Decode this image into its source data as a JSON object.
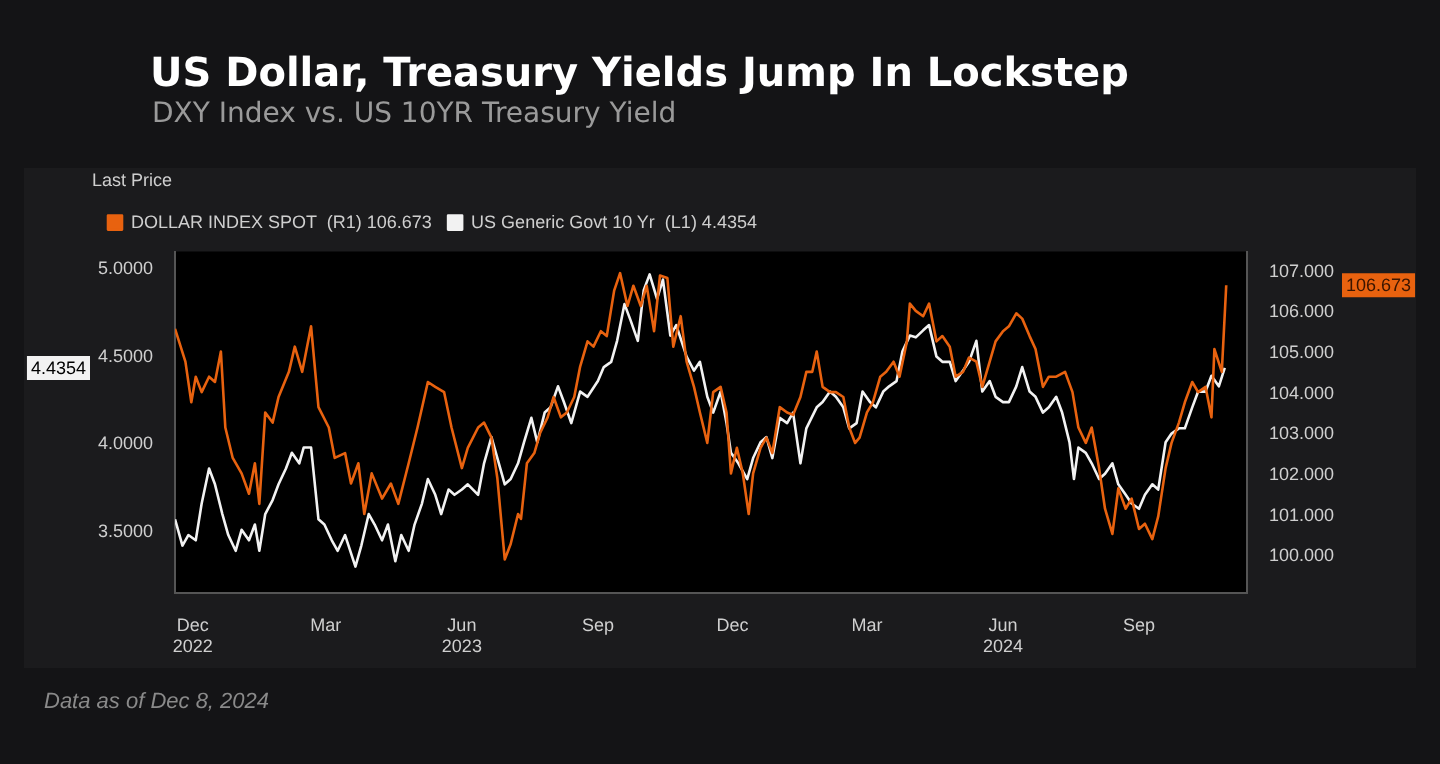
{
  "chart_data": {
    "type": "line",
    "title": "US Dollar, Treasury Yields Jump In Lockstep",
    "subtitle": "DXY Index vs. US 10YR Treasury Yield",
    "legend_title": "Last Price",
    "legend": "top left",
    "grid": false,
    "marker": "none",
    "line_style": "solid",
    "annotations": [
      "106.673",
      "4.4354",
      "Data as of Dec 8, 2024"
    ],
    "xlim": [
      "2022-12-03",
      "2024-11-27"
    ],
    "xticks": [
      {
        "value": "2022-12-15",
        "label": "Dec\n2022"
      },
      {
        "value": "2023-03-15",
        "label": "Mar"
      },
      {
        "value": "2023-06-15",
        "label": "Jun\n2023"
      },
      {
        "value": "2023-09-15",
        "label": "Sep"
      },
      {
        "value": "2023-12-15",
        "label": "Dec"
      },
      {
        "value": "2024-03-15",
        "label": "Mar"
      },
      {
        "value": "2024-06-15",
        "label": "Jun\n2024"
      },
      {
        "value": "2024-09-15",
        "label": "Sep"
      }
    ],
    "ylim": [
      3.15,
      5.1
    ],
    "yticks": [
      {
        "value": 3.5,
        "label": "3.5000"
      },
      {
        "value": 4,
        "label": "4.0000"
      },
      {
        "value": 4.5,
        "label": "4.5000"
      },
      {
        "value": 5,
        "label": "5.0000"
      }
    ],
    "y2lim": [
      99.1,
      107.5
    ],
    "y2ticks": [
      {
        "value": 100,
        "label": "100.000"
      },
      {
        "value": 101,
        "label": "101.000"
      },
      {
        "value": 102,
        "label": "102.000"
      },
      {
        "value": 103,
        "label": "103.000"
      },
      {
        "value": 104,
        "label": "104.000"
      },
      {
        "value": 105,
        "label": "105.000"
      },
      {
        "value": 106,
        "label": "106.000"
      },
      {
        "value": 107,
        "label": "107.000"
      }
    ],
    "series": [
      {
        "name": "DOLLAR INDEX SPOT  (R1) 106.673",
        "color": "#e8620f",
        "axis": "y2",
        "x": [
          "2022-12-03",
          "2022-12-10",
          "2022-12-14",
          "2022-12-17",
          "2022-12-21",
          "2022-12-26",
          "2022-12-30",
          "2023-01-03",
          "2023-01-06",
          "2023-01-11",
          "2023-01-17",
          "2023-01-22",
          "2023-01-26",
          "2023-01-29",
          "2023-02-02",
          "2023-02-07",
          "2023-02-11",
          "2023-02-18",
          "2023-02-22",
          "2023-02-27",
          "2023-03-05",
          "2023-03-10",
          "2023-03-17",
          "2023-03-21",
          "2023-03-28",
          "2023-04-01",
          "2023-04-06",
          "2023-04-10",
          "2023-04-15",
          "2023-04-22",
          "2023-04-28",
          "2023-05-03",
          "2023-05-10",
          "2023-05-16",
          "2023-05-23",
          "2023-05-28",
          "2023-06-03",
          "2023-06-08",
          "2023-06-15",
          "2023-06-19",
          "2023-06-26",
          "2023-06-30",
          "2023-07-05",
          "2023-07-09",
          "2023-07-14",
          "2023-07-18",
          "2023-07-23",
          "2023-07-25",
          "2023-07-29",
          "2023-08-03",
          "2023-08-07",
          "2023-08-12",
          "2023-08-16",
          "2023-08-21",
          "2023-08-25",
          "2023-08-30",
          "2023-09-03",
          "2023-09-08",
          "2023-09-12",
          "2023-09-17",
          "2023-09-21",
          "2023-09-26",
          "2023-09-30",
          "2023-10-05",
          "2023-10-09",
          "2023-10-14",
          "2023-10-18",
          "2023-10-23",
          "2023-10-27",
          "2023-11-01",
          "2023-11-05",
          "2023-11-10",
          "2023-11-14",
          "2023-11-19",
          "2023-11-23",
          "2023-11-28",
          "2023-12-02",
          "2023-12-07",
          "2023-12-11",
          "2023-12-14",
          "2023-12-18",
          "2023-12-22",
          "2023-12-26",
          "2023-12-29",
          "2024-01-03",
          "2024-01-07",
          "2024-01-11",
          "2024-01-16",
          "2024-01-21",
          "2024-01-25",
          "2024-01-30",
          "2024-02-03",
          "2024-02-07",
          "2024-02-10",
          "2024-02-14",
          "2024-02-19",
          "2024-02-23",
          "2024-02-28",
          "2024-03-03",
          "2024-03-07",
          "2024-03-10",
          "2024-03-15",
          "2024-03-19",
          "2024-03-24",
          "2024-03-28",
          "2024-04-02",
          "2024-04-06",
          "2024-04-11",
          "2024-04-13",
          "2024-04-17",
          "2024-04-22",
          "2024-04-26",
          "2024-05-01",
          "2024-05-05",
          "2024-05-10",
          "2024-05-14",
          "2024-05-19",
          "2024-05-23",
          "2024-05-28",
          "2024-06-01",
          "2024-06-06",
          "2024-06-10",
          "2024-06-15",
          "2024-06-19",
          "2024-06-24",
          "2024-06-28",
          "2024-07-03",
          "2024-07-07",
          "2024-07-12",
          "2024-07-16",
          "2024-07-21",
          "2024-07-27",
          "2024-08-01",
          "2024-08-05",
          "2024-08-10",
          "2024-08-14",
          "2024-08-19",
          "2024-08-23",
          "2024-08-28",
          "2024-09-01",
          "2024-09-06",
          "2024-09-10",
          "2024-09-15",
          "2024-09-19",
          "2024-09-24",
          "2024-09-28",
          "2024-10-03",
          "2024-10-07",
          "2024-10-12",
          "2024-10-16",
          "2024-10-21",
          "2024-10-25",
          "2024-10-30",
          "2024-11-03",
          "2024-11-05",
          "2024-11-10",
          "2024-11-13"
        ],
        "values": [
          105.6,
          104.79,
          103.79,
          104.42,
          104.04,
          104.42,
          104.29,
          105.04,
          103.17,
          102.42,
          102.04,
          101.54,
          102.29,
          101.29,
          103.54,
          103.29,
          103.92,
          104.54,
          105.16,
          104.54,
          105.66,
          103.67,
          103.17,
          102.42,
          102.54,
          101.79,
          102.29,
          101.04,
          102.04,
          101.42,
          101.79,
          101.29,
          102.29,
          103.17,
          104.29,
          104.17,
          104.04,
          103.17,
          102.17,
          102.67,
          103.17,
          103.29,
          102.92,
          101.92,
          99.92,
          100.3,
          101.04,
          100.92,
          102.29,
          102.54,
          103.04,
          103.42,
          103.92,
          103.42,
          103.54,
          103.92,
          104.67,
          105.29,
          105.16,
          105.54,
          105.42,
          106.54,
          106.97,
          106.16,
          106.66,
          106.16,
          106.66,
          105.54,
          106.91,
          106.85,
          105.16,
          105.91,
          104.79,
          104.17,
          103.54,
          102.79,
          104.04,
          104.17,
          103.54,
          102.04,
          102.67,
          102.04,
          101.04,
          102.04,
          102.67,
          102.92,
          102.54,
          103.67,
          103.54,
          103.48,
          103.92,
          104.54,
          104.54,
          105.04,
          104.17,
          104.04,
          104.04,
          103.92,
          103.17,
          102.79,
          102.92,
          103.54,
          103.79,
          104.42,
          104.54,
          104.79,
          104.42,
          105.29,
          106.22,
          106.04,
          105.91,
          106.22,
          105.29,
          105.42,
          105.16,
          104.42,
          104.54,
          104.89,
          104.79,
          104.17,
          104.79,
          105.29,
          105.54,
          105.66,
          105.98,
          105.85,
          105.42,
          105.1,
          104.17,
          104.42,
          104.42,
          104.54,
          104.04,
          103.17,
          102.79,
          103.17,
          102.17,
          101.17,
          100.55,
          101.67,
          101.17,
          101.42,
          100.67,
          100.8,
          100.42,
          100.98,
          102.17,
          102.79,
          103.29,
          103.79,
          104.29,
          104.04,
          104.17,
          103.42,
          105.1,
          104.54,
          106.673
        ]
      },
      {
        "name": "US Generic Govt 10 Yr  (L1) 4.4354",
        "color": "#f2f2f2",
        "axis": "y",
        "x": [
          "2022-12-03",
          "2022-12-08",
          "2022-12-12",
          "2022-12-17",
          "2022-12-21",
          "2022-12-26",
          "2022-12-30",
          "2023-01-04",
          "2023-01-08",
          "2023-01-13",
          "2023-01-17",
          "2023-01-22",
          "2023-01-26",
          "2023-01-29",
          "2023-02-02",
          "2023-02-07",
          "2023-02-11",
          "2023-02-16",
          "2023-02-20",
          "2023-02-25",
          "2023-02-28",
          "2023-03-05",
          "2023-03-10",
          "2023-03-14",
          "2023-03-19",
          "2023-03-23",
          "2023-03-28",
          "2023-04-04",
          "2023-04-08",
          "2023-04-13",
          "2023-04-17",
          "2023-04-22",
          "2023-04-26",
          "2023-05-01",
          "2023-05-05",
          "2023-05-10",
          "2023-05-14",
          "2023-05-19",
          "2023-05-23",
          "2023-05-28",
          "2023-06-01",
          "2023-06-06",
          "2023-06-10",
          "2023-06-15",
          "2023-06-19",
          "2023-06-26",
          "2023-06-30",
          "2023-07-05",
          "2023-07-09",
          "2023-07-14",
          "2023-07-18",
          "2023-07-23",
          "2023-07-27",
          "2023-08-01",
          "2023-08-05",
          "2023-08-10",
          "2023-08-14",
          "2023-08-19",
          "2023-08-23",
          "2023-08-28",
          "2023-09-03",
          "2023-09-08",
          "2023-09-15",
          "2023-09-19",
          "2023-09-24",
          "2023-09-28",
          "2023-10-03",
          "2023-10-07",
          "2023-10-12",
          "2023-10-16",
          "2023-10-20",
          "2023-10-25",
          "2023-10-29",
          "2023-11-03",
          "2023-11-07",
          "2023-11-14",
          "2023-11-19",
          "2023-11-23",
          "2023-11-28",
          "2023-12-02",
          "2023-12-07",
          "2023-12-11",
          "2023-12-14",
          "2023-12-19",
          "2023-12-25",
          "2023-12-29",
          "2024-01-03",
          "2024-01-07",
          "2024-01-11",
          "2024-01-16",
          "2024-01-21",
          "2024-01-25",
          "2024-01-30",
          "2024-02-03",
          "2024-02-10",
          "2024-02-14",
          "2024-02-19",
          "2024-02-23",
          "2024-02-28",
          "2024-03-03",
          "2024-03-08",
          "2024-03-12",
          "2024-03-17",
          "2024-03-21",
          "2024-03-26",
          "2024-03-30",
          "2024-04-04",
          "2024-04-08",
          "2024-04-13",
          "2024-04-17",
          "2024-04-22",
          "2024-04-26",
          "2024-05-01",
          "2024-05-05",
          "2024-05-10",
          "2024-05-14",
          "2024-05-19",
          "2024-05-23",
          "2024-05-28",
          "2024-06-01",
          "2024-06-06",
          "2024-06-10",
          "2024-06-15",
          "2024-06-19",
          "2024-06-24",
          "2024-06-28",
          "2024-07-03",
          "2024-07-07",
          "2024-07-12",
          "2024-07-16",
          "2024-07-21",
          "2024-07-25",
          "2024-07-30",
          "2024-08-02",
          "2024-08-05",
          "2024-08-10",
          "2024-08-14",
          "2024-08-19",
          "2024-08-23",
          "2024-08-28",
          "2024-09-01",
          "2024-09-06",
          "2024-09-10",
          "2024-09-15",
          "2024-09-19",
          "2024-09-24",
          "2024-09-28",
          "2024-10-03",
          "2024-10-07",
          "2024-10-12",
          "2024-10-16",
          "2024-10-21",
          "2024-10-25",
          "2024-10-30",
          "2024-11-03",
          "2024-11-08",
          "2024-11-12"
        ],
        "values": [
          3.57,
          3.42,
          3.48,
          3.45,
          3.66,
          3.86,
          3.77,
          3.6,
          3.48,
          3.39,
          3.51,
          3.45,
          3.54,
          3.39,
          3.6,
          3.68,
          3.77,
          3.86,
          3.95,
          3.89,
          3.98,
          3.98,
          3.57,
          3.54,
          3.45,
          3.39,
          3.48,
          3.3,
          3.42,
          3.6,
          3.54,
          3.45,
          3.54,
          3.33,
          3.48,
          3.39,
          3.54,
          3.66,
          3.8,
          3.71,
          3.6,
          3.74,
          3.71,
          3.74,
          3.77,
          3.71,
          3.89,
          4.04,
          3.92,
          3.77,
          3.8,
          3.89,
          4.01,
          4.15,
          4.01,
          4.18,
          4.21,
          4.33,
          4.24,
          4.12,
          4.3,
          4.27,
          4.36,
          4.44,
          4.47,
          4.59,
          4.8,
          4.71,
          4.59,
          4.88,
          4.97,
          4.83,
          4.94,
          4.62,
          4.68,
          4.5,
          4.42,
          4.47,
          4.27,
          4.18,
          4.3,
          4.12,
          3.95,
          3.89,
          3.8,
          3.92,
          4.01,
          4.04,
          3.92,
          4.15,
          4.12,
          4.18,
          3.89,
          4.09,
          4.21,
          4.24,
          4.3,
          4.27,
          4.21,
          4.09,
          4.12,
          4.3,
          4.24,
          4.21,
          4.3,
          4.33,
          4.36,
          4.53,
          4.62,
          4.61,
          4.65,
          4.68,
          4.5,
          4.47,
          4.47,
          4.36,
          4.42,
          4.47,
          4.59,
          4.3,
          4.36,
          4.27,
          4.24,
          4.24,
          4.33,
          4.44,
          4.3,
          4.27,
          4.18,
          4.21,
          4.27,
          4.18,
          4.01,
          3.8,
          3.98,
          3.95,
          3.89,
          3.8,
          3.83,
          3.89,
          3.77,
          3.71,
          3.66,
          3.63,
          3.71,
          3.77,
          3.74,
          4.01,
          4.06,
          4.09,
          4.09,
          4.21,
          4.3,
          4.3,
          4.39,
          4.33,
          4.4354
        ]
      }
    ]
  }
}
